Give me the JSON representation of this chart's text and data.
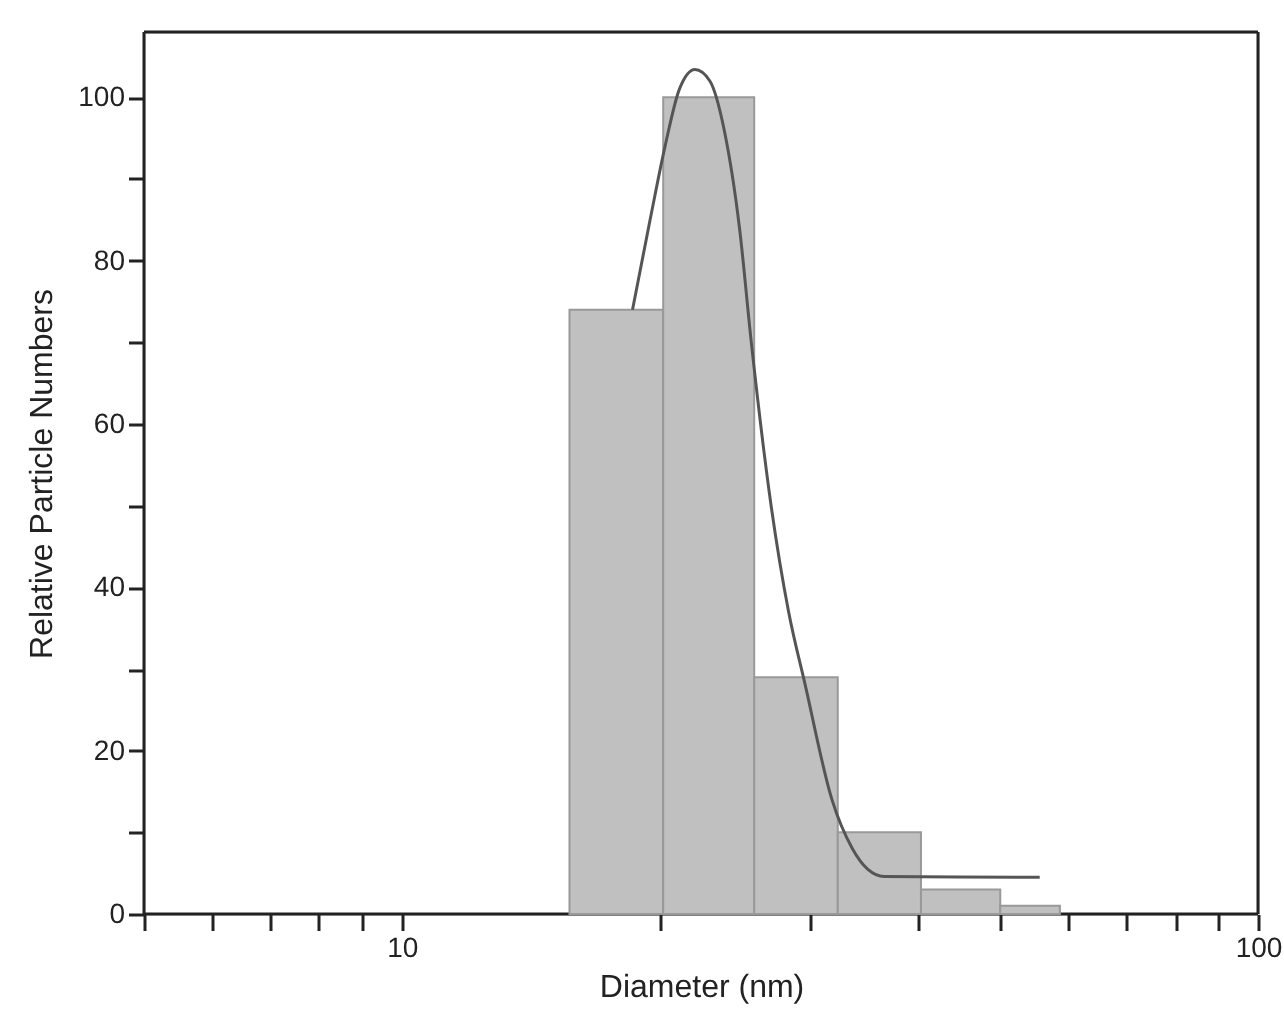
{
  "chart_data": {
    "type": "histogram",
    "xlabel": "Diameter (nm)",
    "ylabel": "Relative Particle Numbers",
    "log": "x",
    "xlim": [
      5,
      100
    ],
    "ylim": [
      0,
      108
    ],
    "xticks": [
      {
        "value": 5,
        "label": null
      },
      {
        "value": 6,
        "label": null
      },
      {
        "value": 7,
        "label": null
      },
      {
        "value": 8,
        "label": null
      },
      {
        "value": 9,
        "label": null
      },
      10,
      {
        "value": 20,
        "label": null
      },
      {
        "value": 30,
        "label": null
      },
      {
        "value": 40,
        "label": null
      },
      {
        "value": 50,
        "label": null
      },
      {
        "value": 60,
        "label": null
      },
      {
        "value": 70,
        "label": null
      },
      {
        "value": 80,
        "label": null
      },
      {
        "value": 90,
        "label": null
      },
      100
    ],
    "yticks": [
      0,
      {
        "value": 10,
        "label": null
      },
      20,
      {
        "value": 30,
        "label": null
      },
      40,
      {
        "value": 50,
        "label": null
      },
      60,
      {
        "value": 70,
        "label": null
      },
      80,
      {
        "value": 90,
        "label": null
      },
      100
    ],
    "bins": [
      15.7,
      20.2,
      25.8,
      32.3,
      40.4,
      50,
      58.7
    ],
    "values": [
      74,
      100,
      29,
      10,
      3,
      1
    ],
    "color": "#c0c0c0",
    "series": [
      {
        "type": "line",
        "color": "#555555",
        "x": [
          18.6,
          19.5,
          20.3,
          21.1,
          22.0,
          22.9,
          23.8,
          24.8,
          25.6,
          27.0,
          28.3,
          29.6,
          31.8,
          33.6,
          35.0,
          36.6,
          55.6
        ],
        "values": [
          74,
          85,
          94,
          101,
          103.4,
          102,
          96,
          84,
          70,
          50,
          37,
          28,
          14,
          8,
          5.5,
          4.6,
          4.5
        ]
      }
    ],
    "grid": false
  }
}
